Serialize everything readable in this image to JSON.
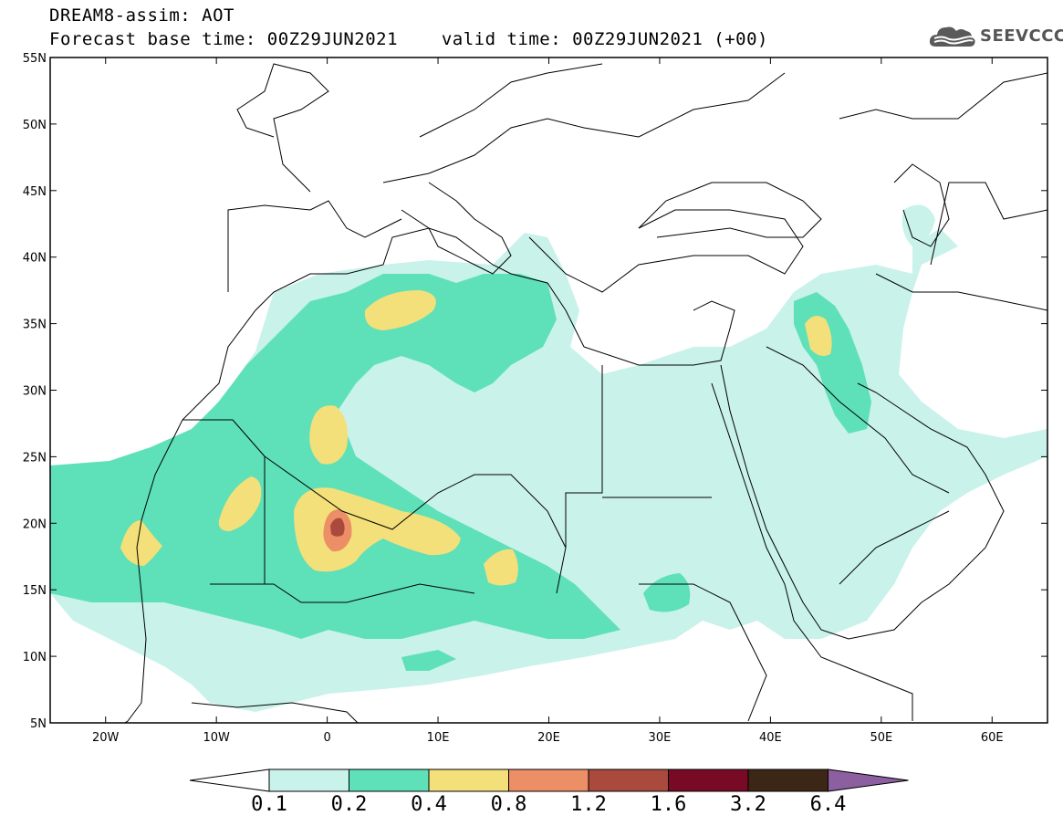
{
  "title": {
    "line1": "DREAM8-assim: AOT",
    "base_time_label": "Forecast base time: 00Z29JUN2021",
    "valid_time_label": "valid time: 00Z29JUN2021 (+00)"
  },
  "logo": {
    "text": "SEEVCCC",
    "icon": "cloud-logo-icon"
  },
  "map": {
    "lon_range": [
      -25,
      65
    ],
    "lat_range": [
      5,
      55
    ],
    "lat_ticks": [
      {
        "value": 55,
        "label": "55N"
      },
      {
        "value": 50,
        "label": "50N"
      },
      {
        "value": 45,
        "label": "45N"
      },
      {
        "value": 40,
        "label": "40N"
      },
      {
        "value": 35,
        "label": "35N"
      },
      {
        "value": 30,
        "label": "30N"
      },
      {
        "value": 25,
        "label": "25N"
      },
      {
        "value": 20,
        "label": "20N"
      },
      {
        "value": 15,
        "label": "15N"
      },
      {
        "value": 10,
        "label": "10N"
      },
      {
        "value": 5,
        "label": "5N"
      }
    ],
    "lon_ticks": [
      {
        "value": -20,
        "label": "20W"
      },
      {
        "value": -10,
        "label": "10W"
      },
      {
        "value": 0,
        "label": "0"
      },
      {
        "value": 10,
        "label": "10E"
      },
      {
        "value": 20,
        "label": "20E"
      },
      {
        "value": 30,
        "label": "30E"
      },
      {
        "value": 40,
        "label": "40E"
      },
      {
        "value": 50,
        "label": "50E"
      },
      {
        "value": 60,
        "label": "60E"
      }
    ]
  },
  "colorbar": {
    "under_color": "#ffffff",
    "over_color": "#8b5fa0",
    "bins": [
      {
        "color": "#c8f2ea"
      },
      {
        "color": "#5ee0b8"
      },
      {
        "color": "#f4e07a"
      },
      {
        "color": "#ec8e66"
      },
      {
        "color": "#aa4a3c"
      },
      {
        "color": "#780a26"
      },
      {
        "color": "#3c2616"
      }
    ],
    "labels": [
      "0.1",
      "0.2",
      "0.4",
      "0.8",
      "1.2",
      "1.6",
      "3.2",
      "6.4"
    ]
  }
}
